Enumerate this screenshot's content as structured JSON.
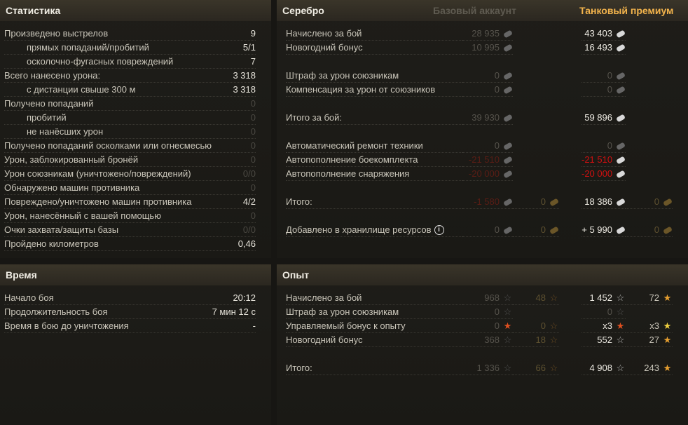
{
  "stats": {
    "title": "Статистика",
    "rows": [
      {
        "label": "Произведено выстрелов",
        "value": "9"
      },
      {
        "label": "прямых попаданий/пробитий",
        "value": "5/1",
        "indent": true
      },
      {
        "label": "осколочно-фугасных повреждений",
        "value": "7",
        "indent": true
      },
      {
        "label": "Всего нанесено урона:",
        "value": "3 318"
      },
      {
        "label": "с дистанции свыше 300 м",
        "value": "3 318",
        "indent": true
      },
      {
        "label": "Получено попаданий",
        "value": "0"
      },
      {
        "label": "пробитий",
        "value": "0",
        "indent": true
      },
      {
        "label": "не нанёсших урон",
        "value": "0",
        "indent": true
      },
      {
        "label": "Получено попаданий осколками или огнесмесью",
        "value": "0"
      },
      {
        "label": "Урон, заблокированный бронёй",
        "value": "0"
      },
      {
        "label": "Урон союзникам (уничтожено/повреждений)",
        "value": "0/0"
      },
      {
        "label": "Обнаружено машин противника",
        "value": "0"
      },
      {
        "label": "Повреждено/уничтожено машин противника",
        "value": "4/2"
      },
      {
        "label": "Урон, нанесённый с вашей помощью",
        "value": "0"
      },
      {
        "label": "Очки захвата/защиты базы",
        "value": "0/0"
      },
      {
        "label": "Пройдено километров",
        "value": "0,46"
      }
    ]
  },
  "time": {
    "title": "Время",
    "rows": [
      {
        "label": "Начало боя",
        "value": "20:12"
      },
      {
        "label": "Продолжительность боя",
        "value": "7 мин 12 с"
      },
      {
        "label": "Время в бою до уничтожения",
        "value": "-"
      }
    ]
  },
  "silver": {
    "title": "Серебро",
    "base_header": "Базовый аккаунт",
    "premium_header": "Танковый премиум",
    "groups": [
      [
        {
          "label": "Начислено за бой",
          "base": "28 935",
          "premium": "43 403"
        },
        {
          "label": "Новогодний бонус",
          "base": "10 995",
          "premium": "16 493"
        }
      ],
      [
        {
          "label": "Штраф за урон союзникам",
          "base": "0",
          "premium": "0"
        },
        {
          "label": "Компенсация за урон от союзников",
          "base": "0",
          "premium": "0"
        }
      ],
      [
        {
          "label": "Итого за бой:",
          "base": "39 930",
          "premium": "59 896"
        }
      ],
      [
        {
          "label": "Автоматический ремонт техники",
          "base": "0",
          "premium": "0"
        },
        {
          "label": "Автопополнение боекомплекта",
          "base": "-21 510",
          "premium": "-21 510"
        },
        {
          "label": "Автопополнение снаряжения",
          "base": "-20 000",
          "premium": "-20 000"
        }
      ],
      [
        {
          "label": "Итого:",
          "base": "-1 580",
          "base_gold": "0",
          "premium": "18 386",
          "premium_gold": "0"
        }
      ],
      [
        {
          "label": "Добавлено в хранилище ресурсов",
          "info": true,
          "base": "0",
          "base_gold": "0",
          "premium": "+ 5 990",
          "premium_gold": "0"
        }
      ]
    ]
  },
  "experience": {
    "title": "Опыт",
    "groups": [
      [
        {
          "label": "Начислено за бой",
          "base": "968",
          "base_free": "48",
          "premium": "1 452",
          "premium_free": "72"
        },
        {
          "label": "Штраф за урон союзникам",
          "base": "0",
          "premium": "0"
        },
        {
          "label": "Управляемый бонус к опыту",
          "base": "0",
          "base_free": "0",
          "premium": "x3",
          "premium_free": "x3"
        },
        {
          "label": "Новогодний бонус",
          "base": "368",
          "base_free": "18",
          "premium": "552",
          "premium_free": "27"
        }
      ],
      [
        {
          "label": "Итого:",
          "base": "1 336",
          "base_free": "66",
          "premium": "4 908",
          "premium_free": "243"
        }
      ]
    ]
  },
  "icons": {
    "silver": "silver-coin-icon",
    "xp": "star-icon",
    "free_xp": "free-xp-star-icon",
    "info": "info-icon"
  },
  "colors": {
    "premium_header": "#f2b34c",
    "negative": "#d01010",
    "background": "#171613"
  }
}
